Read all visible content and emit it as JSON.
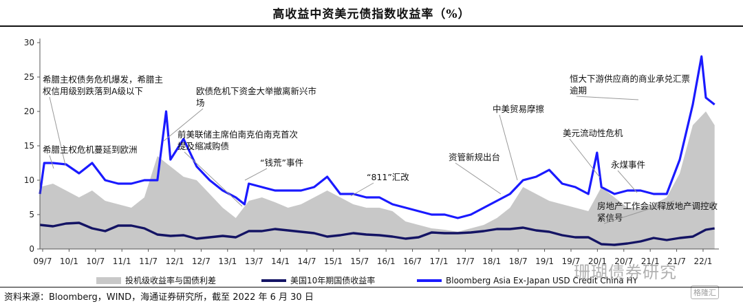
{
  "title": "高收益中资美元债指数收益率（%）",
  "source": "资料来源：Bloomberg，WIND，海通证券研究所，截至 2022 年 6 月 30 日",
  "watermark": "珊瑚债券研究",
  "watermark_small": "格隆汇",
  "colors": {
    "hy": "#1a1aff",
    "ust": "#141464",
    "spread": "#c8c8c8"
  },
  "chart_data": {
    "type": "area",
    "title": "高收益中资美元债指数收益率（%）",
    "ylim": [
      0,
      30
    ],
    "yticks": [
      0,
      5,
      10,
      15,
      20,
      25,
      30
    ],
    "xlabel": "",
    "ylabel": "",
    "grid": false,
    "legend": "bottom",
    "x_tick_labels": [
      "09/7",
      "10/1",
      "10/7",
      "11/1",
      "11/7",
      "12/1",
      "12/7",
      "13/1",
      "13/7",
      "14/1",
      "14/7",
      "15/1",
      "15/7",
      "16/1",
      "16/7",
      "17/1",
      "17/7",
      "18/1",
      "18/7",
      "19/1",
      "19/7",
      "20/1",
      "20/7",
      "21/1",
      "21/7",
      "22/1"
    ],
    "series": [
      {
        "name": "投机级收益率与国债利差",
        "kind": "area",
        "x": [
          "2009-07",
          "2009-10",
          "2010-01",
          "2010-04",
          "2010-07",
          "2010-10",
          "2011-01",
          "2011-04",
          "2011-07",
          "2011-10",
          "2012-01",
          "2012-04",
          "2012-07",
          "2012-10",
          "2013-01",
          "2013-04",
          "2013-07",
          "2013-10",
          "2014-01",
          "2014-04",
          "2014-07",
          "2014-10",
          "2015-01",
          "2015-04",
          "2015-07",
          "2015-10",
          "2016-01",
          "2016-04",
          "2016-07",
          "2016-10",
          "2017-01",
          "2017-04",
          "2017-07",
          "2017-10",
          "2018-01",
          "2018-04",
          "2018-07",
          "2018-10",
          "2019-01",
          "2019-04",
          "2019-07",
          "2019-10",
          "2020-01",
          "2020-04",
          "2020-07",
          "2020-10",
          "2021-01",
          "2021-04",
          "2021-07",
          "2021-10",
          "2022-01",
          "2022-04",
          "2022-06"
        ],
        "values": [
          9.0,
          9.5,
          8.5,
          7.5,
          8.5,
          7.0,
          6.5,
          6.0,
          7.5,
          13.5,
          12.0,
          10.5,
          10.0,
          8.0,
          6.0,
          4.5,
          7.0,
          7.5,
          6.8,
          6.0,
          6.5,
          7.5,
          8.5,
          7.5,
          6.5,
          6.0,
          6.0,
          5.5,
          4.0,
          3.5,
          3.0,
          2.8,
          2.5,
          3.0,
          3.5,
          4.5,
          6.0,
          9.0,
          8.0,
          7.0,
          6.5,
          6.0,
          5.5,
          9.0,
          7.5,
          6.0,
          6.0,
          6.5,
          7.5,
          11.0,
          18.0,
          20.0,
          18.0
        ]
      },
      {
        "name": "美国10年期国债收益率",
        "kind": "line",
        "x": [
          "2009-07",
          "2009-10",
          "2010-01",
          "2010-04",
          "2010-07",
          "2010-10",
          "2011-01",
          "2011-04",
          "2011-07",
          "2011-10",
          "2012-01",
          "2012-04",
          "2012-07",
          "2012-10",
          "2013-01",
          "2013-04",
          "2013-07",
          "2013-10",
          "2014-01",
          "2014-04",
          "2014-07",
          "2014-10",
          "2015-01",
          "2015-04",
          "2015-07",
          "2015-10",
          "2016-01",
          "2016-04",
          "2016-07",
          "2016-10",
          "2017-01",
          "2017-04",
          "2017-07",
          "2017-10",
          "2018-01",
          "2018-04",
          "2018-07",
          "2018-10",
          "2019-01",
          "2019-04",
          "2019-07",
          "2019-10",
          "2020-01",
          "2020-04",
          "2020-07",
          "2020-10",
          "2021-01",
          "2021-04",
          "2021-07",
          "2021-10",
          "2022-01",
          "2022-04",
          "2022-06"
        ],
        "values": [
          3.5,
          3.3,
          3.7,
          3.8,
          3.0,
          2.6,
          3.4,
          3.4,
          3.0,
          2.1,
          1.9,
          2.0,
          1.5,
          1.7,
          1.9,
          1.7,
          2.6,
          2.6,
          2.9,
          2.7,
          2.5,
          2.3,
          1.8,
          2.0,
          2.3,
          2.1,
          2.0,
          1.8,
          1.5,
          1.7,
          2.4,
          2.3,
          2.3,
          2.4,
          2.6,
          2.9,
          2.9,
          3.1,
          2.7,
          2.5,
          2.0,
          1.7,
          1.7,
          0.7,
          0.6,
          0.8,
          1.1,
          1.6,
          1.3,
          1.6,
          1.8,
          2.8,
          3.0
        ]
      },
      {
        "name": "Bloomberg Asia Ex-Japan USD Credit China HY",
        "kind": "line",
        "x": [
          "2009-07",
          "2009-08",
          "2009-10",
          "2010-01",
          "2010-04",
          "2010-07",
          "2010-10",
          "2011-01",
          "2011-04",
          "2011-07",
          "2011-10",
          "2011-12",
          "2012-01",
          "2012-04",
          "2012-07",
          "2012-10",
          "2013-01",
          "2013-04",
          "2013-06",
          "2013-07",
          "2013-10",
          "2014-01",
          "2014-04",
          "2014-07",
          "2014-10",
          "2015-01",
          "2015-04",
          "2015-07",
          "2015-10",
          "2016-01",
          "2016-04",
          "2016-07",
          "2016-10",
          "2017-01",
          "2017-04",
          "2017-07",
          "2017-10",
          "2018-01",
          "2018-04",
          "2018-07",
          "2018-10",
          "2019-01",
          "2019-04",
          "2019-07",
          "2019-10",
          "2020-01",
          "2020-03",
          "2020-04",
          "2020-07",
          "2020-10",
          "2021-01",
          "2021-04",
          "2021-07",
          "2021-10",
          "2022-01",
          "2022-03",
          "2022-04",
          "2022-06"
        ],
        "values": [
          8.0,
          12.5,
          12.5,
          12.3,
          11.0,
          12.5,
          10.0,
          9.5,
          9.5,
          10.0,
          10.0,
          20.0,
          13.0,
          16.0,
          12.0,
          10.0,
          8.5,
          7.5,
          6.5,
          9.5,
          9.0,
          8.5,
          8.5,
          8.5,
          9.0,
          10.5,
          8.0,
          8.0,
          7.5,
          7.5,
          6.5,
          6.0,
          5.5,
          5.0,
          5.0,
          4.5,
          5.0,
          6.0,
          7.0,
          8.0,
          10.0,
          10.5,
          11.5,
          9.5,
          9.0,
          8.0,
          14.0,
          9.0,
          8.0,
          8.5,
          8.5,
          8.0,
          8.0,
          13.0,
          21.0,
          28.0,
          22.0,
          21.0
        ]
      }
    ],
    "annotations": [
      {
        "lines": [
          "希腊主权债务危机爆发，希腊主",
          "权信用级别跌落到A级以下"
        ],
        "date": "2010-04"
      },
      {
        "lines": [
          "欧债危机下资金大举撤离新兴市",
          "场"
        ],
        "date": "2011-10"
      },
      {
        "lines": [
          "希腊主权危机蔓延到欧洲"
        ],
        "date": "2009-09"
      },
      {
        "lines": [
          "前美联储主席伯南克伯南克首次",
          "提及缩减购债"
        ],
        "date": "2013-05"
      },
      {
        "lines": [
          "“钱荒”事件"
        ],
        "date": "2013-06"
      },
      {
        "lines": [
          "“811”汇改"
        ],
        "date": "2015-08"
      },
      {
        "lines": [
          "资管新规出台"
        ],
        "date": "2018-04"
      },
      {
        "lines": [
          "中美贸易摩擦"
        ],
        "date": "2018-07"
      },
      {
        "lines": [
          "恒大下游供应商的商业承兑汇票",
          "逾期"
        ],
        "date": "2020-09"
      },
      {
        "lines": [
          "美元流动性危机"
        ],
        "date": "2020-03"
      },
      {
        "lines": [
          "永煤事件"
        ],
        "date": "2020-11"
      },
      {
        "lines": [
          "房地产工作会议释放地产调控收",
          "紧信号"
        ],
        "date": "2021-03"
      }
    ]
  }
}
